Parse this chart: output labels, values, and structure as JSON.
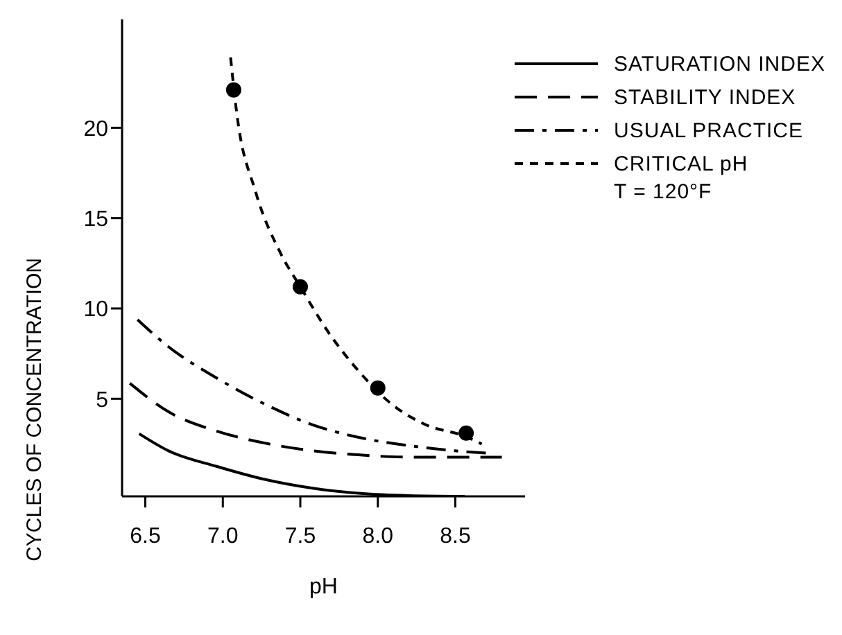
{
  "chart_data": {
    "type": "line",
    "xlabel": "pH",
    "ylabel": "CYCLES OF CONCENTRATION",
    "xlim": [
      6.35,
      8.95
    ],
    "xticks": [
      {
        "value": 6.5,
        "label": "6.5"
      },
      {
        "value": 7.0,
        "label": "7.0"
      },
      {
        "value": 7.5,
        "label": "7.5"
      },
      {
        "value": 8.0,
        "label": "8.0"
      },
      {
        "value": 8.5,
        "label": "8.5"
      }
    ],
    "ylim": [
      -0.4,
      26
    ],
    "yticks": [
      5,
      10,
      15,
      20
    ],
    "grid": false,
    "legend": "top right",
    "marker": "none",
    "annotations": [
      "T = 120°F"
    ],
    "series": [
      {
        "name": "SATURATION INDEX",
        "color": "#000000",
        "line_style": "solid",
        "x": [
          6.46,
          6.65,
          6.96,
          7.27,
          7.58,
          7.89,
          8.2,
          8.56
        ],
        "values": [
          3.07,
          2.12,
          1.26,
          0.54,
          0.05,
          -0.24,
          -0.36,
          -0.4
        ]
      },
      {
        "name": "STABILITY INDEX",
        "color": "#000000",
        "line_style": "dashed",
        "x": [
          6.4,
          6.65,
          6.96,
          7.27,
          7.58,
          7.89,
          8.2,
          8.8
        ],
        "values": [
          5.86,
          4.28,
          3.21,
          2.55,
          2.12,
          1.89,
          1.77,
          1.77
        ]
      },
      {
        "name": "USUAL PRACTICE",
        "color": "#000000",
        "line_style": "dashdot",
        "x": [
          6.45,
          6.65,
          6.96,
          7.27,
          7.58,
          7.89,
          8.2,
          8.5,
          8.73
        ],
        "values": [
          9.38,
          7.88,
          6.15,
          4.71,
          3.56,
          2.84,
          2.41,
          2.12,
          1.98
        ]
      },
      {
        "name": "CRITICAL pH",
        "color": "#000000",
        "line_style": "dotted",
        "x": [
          7.05,
          7.09,
          7.21,
          7.37,
          7.5,
          7.68,
          7.89,
          8.09,
          8.3,
          8.57,
          8.67
        ],
        "values": [
          23.9,
          20.8,
          16.5,
          13.1,
          11.2,
          8.7,
          6.4,
          4.7,
          3.6,
          2.9,
          2.5
        ]
      },
      {
        "type": "scatter",
        "color": "#000000",
        "marker": "circle",
        "x": [
          7.07,
          7.5,
          8.0,
          8.57
        ],
        "values": [
          22.1,
          11.2,
          5.6,
          3.1
        ]
      }
    ]
  }
}
